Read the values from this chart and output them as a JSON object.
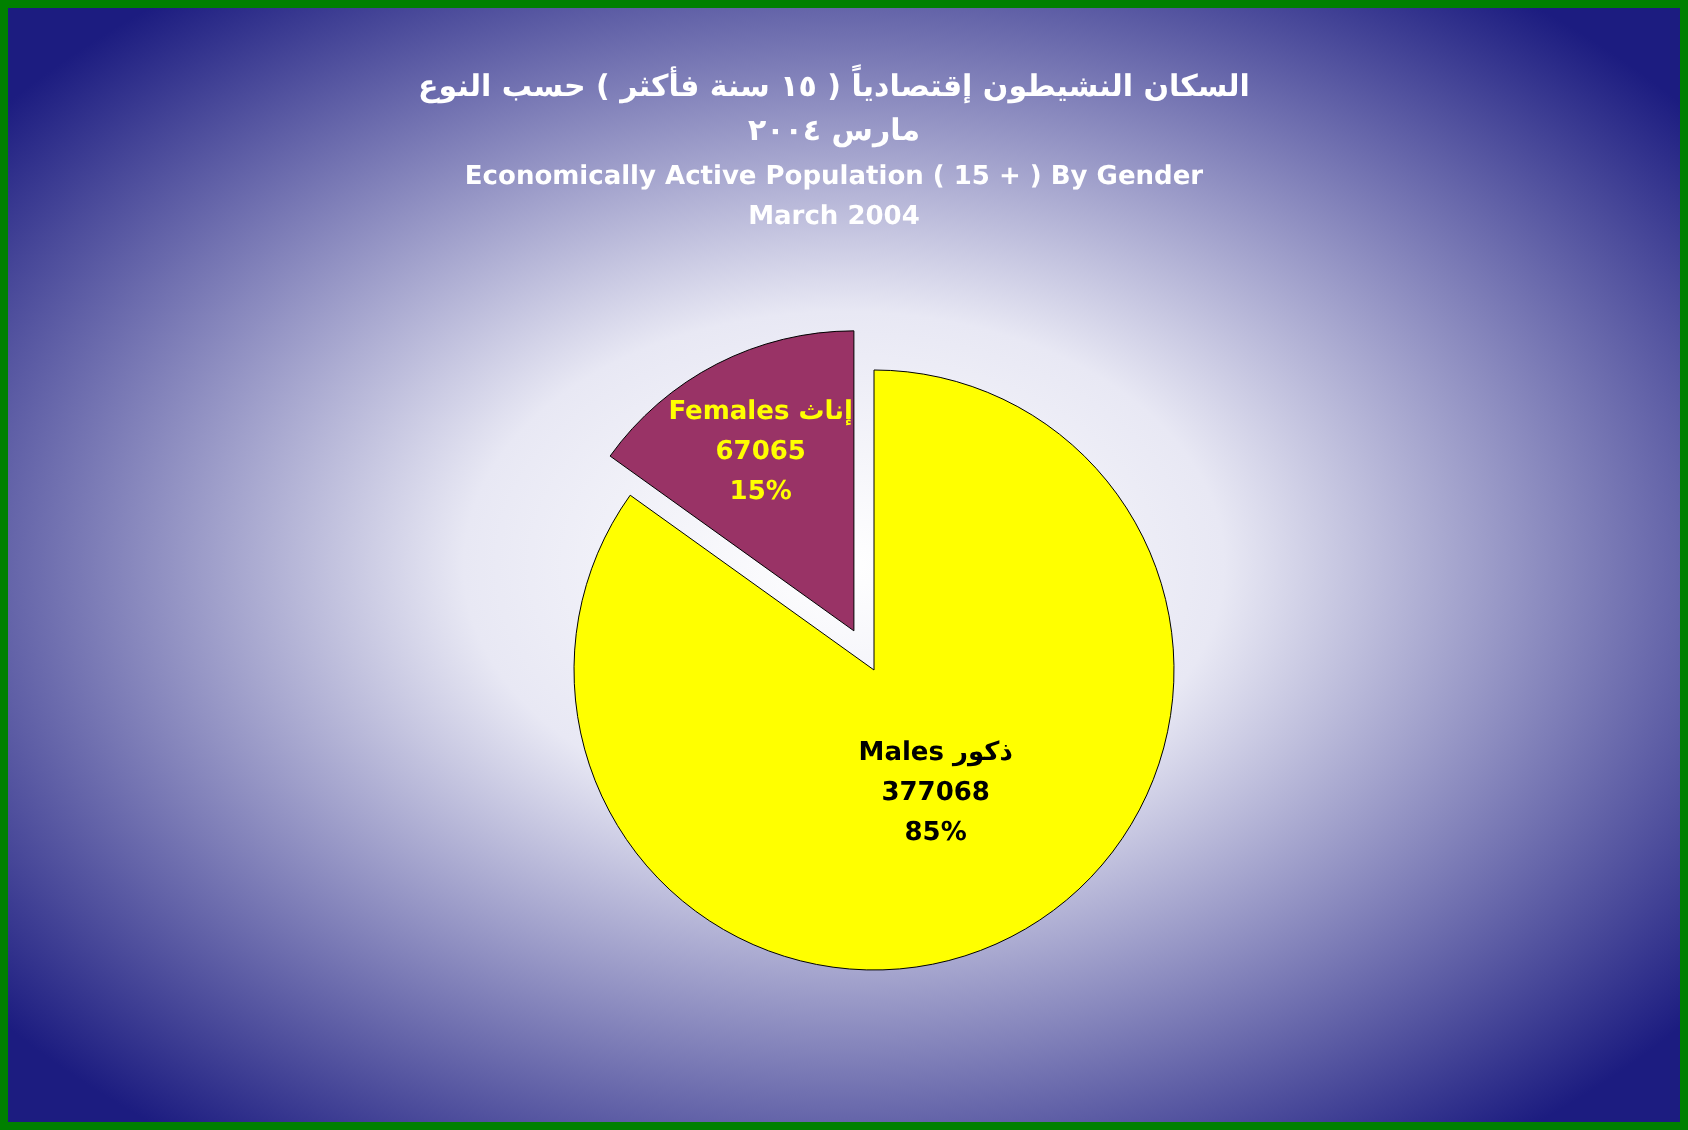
{
  "chart_data": {
    "type": "pie",
    "title": "السكان النشيطون إقتصادياً ( ١٥ سنة فأكثر ) حسب النوع\nمارس ٢٠٠٤",
    "subtitle": "Economically Active Population ( 15 + ) By Gender\nMarch 2004",
    "categories": [
      "Males ذكور",
      "Females إناث"
    ],
    "values": [
      377068,
      67065
    ],
    "colors": [
      "#ffff00",
      "#993366"
    ],
    "value_labels": [
      "377068\n85%",
      "67065\n15%"
    ]
  }
}
